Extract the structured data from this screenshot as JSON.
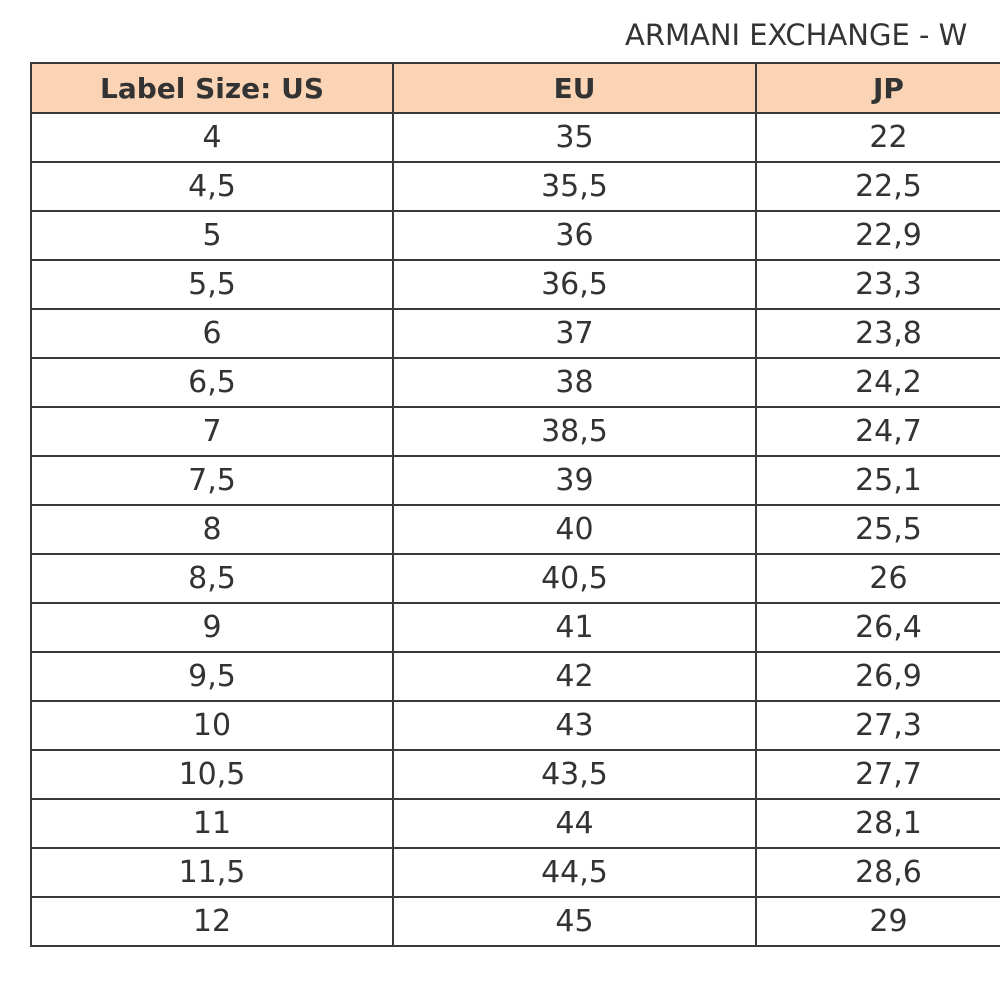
{
  "header": {
    "title": "ARMANI EXCHANGE - W"
  },
  "table": {
    "columns": [
      "Label Size: US",
      "EU",
      "JP"
    ],
    "rows": [
      [
        "4",
        "35",
        "22"
      ],
      [
        "4,5",
        "35,5",
        "22,5"
      ],
      [
        "5",
        "36",
        "22,9"
      ],
      [
        "5,5",
        "36,5",
        "23,3"
      ],
      [
        "6",
        "37",
        "23,8"
      ],
      [
        "6,5",
        "38",
        "24,2"
      ],
      [
        "7",
        "38,5",
        "24,7"
      ],
      [
        "7,5",
        "39",
        "25,1"
      ],
      [
        "8",
        "40",
        "25,5"
      ],
      [
        "8,5",
        "40,5",
        "26"
      ],
      [
        "9",
        "41",
        "26,4"
      ],
      [
        "9,5",
        "42",
        "26,9"
      ],
      [
        "10",
        "43",
        "27,3"
      ],
      [
        "10,5",
        "43,5",
        "27,7"
      ],
      [
        "11",
        "44",
        "28,1"
      ],
      [
        "11,5",
        "44,5",
        "28,6"
      ],
      [
        "12",
        "45",
        "29"
      ]
    ]
  },
  "colors": {
    "header_background": "#fad4b4",
    "border": "#3a3a3a",
    "text": "#333333"
  }
}
